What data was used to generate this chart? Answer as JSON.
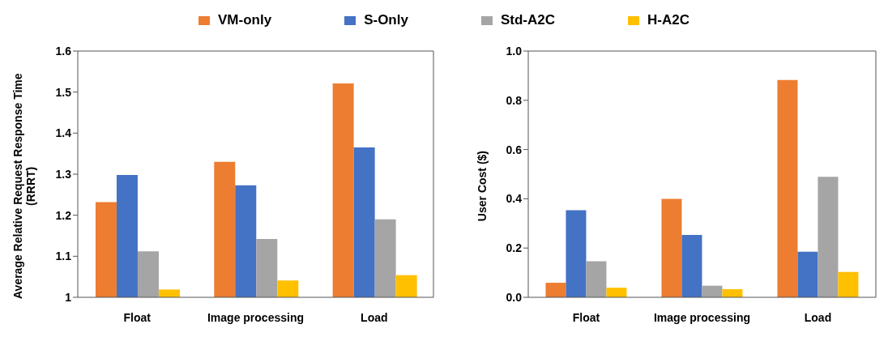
{
  "chart_data": [
    {
      "type": "bar",
      "ylabel": "Average Relative Request Response Time (RRRT)",
      "categories": [
        "Float",
        "Image processing",
        "Load"
      ],
      "ylim": [
        1,
        1.6
      ],
      "yticks": [
        1,
        1.1,
        1.2,
        1.3,
        1.4,
        1.5,
        1.6
      ],
      "grid": false,
      "legend": "top",
      "series": [
        {
          "name": "VM-only",
          "color": "#ed7d31",
          "values": [
            1.232,
            1.33,
            1.521
          ]
        },
        {
          "name": "S-Only",
          "color": "#4472c4",
          "values": [
            1.298,
            1.273,
            1.365
          ]
        },
        {
          "name": "Std-A2C",
          "color": "#a5a5a5",
          "values": [
            1.112,
            1.142,
            1.19
          ]
        },
        {
          "name": "H-A2C",
          "color": "#ffc000",
          "values": [
            1.019,
            1.041,
            1.054
          ]
        }
      ]
    },
    {
      "type": "bar",
      "ylabel": "User Cost ($)",
      "categories": [
        "Float",
        "Image processing",
        "Load"
      ],
      "ylim": [
        0,
        1
      ],
      "yticks": [
        {
          "value": 0,
          "label": "0.0"
        },
        0.2,
        0.4,
        0.6,
        0.8,
        {
          "value": 1,
          "label": "1.0"
        }
      ],
      "grid": false,
      "series": [
        {
          "color": "#ed7d31",
          "values": [
            0.059,
            0.4,
            0.882
          ]
        },
        {
          "color": "#4472c4",
          "values": [
            0.354,
            0.253,
            0.185
          ]
        },
        {
          "color": "#a5a5a5",
          "values": [
            0.146,
            0.047,
            0.489
          ]
        },
        {
          "color": "#ffc000",
          "values": [
            0.039,
            0.033,
            0.103
          ]
        }
      ]
    }
  ]
}
